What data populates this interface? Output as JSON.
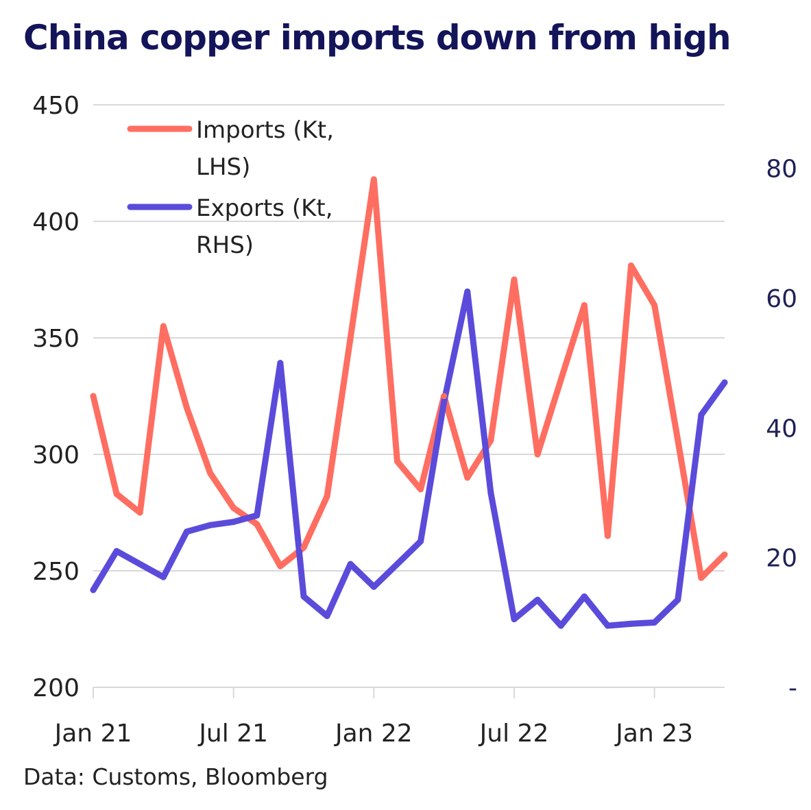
{
  "chart_data": {
    "type": "line",
    "title": "China copper imports down from high",
    "source": "Data: Customs, Bloomberg",
    "x": [
      "2021-01",
      "2021-02",
      "2021-03",
      "2021-04",
      "2021-05",
      "2021-06",
      "2021-07",
      "2021-08",
      "2021-09",
      "2021-10",
      "2021-11",
      "2021-12",
      "2022-01",
      "2022-02",
      "2022-03",
      "2022-04",
      "2022-05",
      "2022-06",
      "2022-07",
      "2022-08",
      "2022-09",
      "2022-10",
      "2022-11",
      "2022-12",
      "2023-01",
      "2023-02",
      "2023-03",
      "2023-04"
    ],
    "x_tick_labels": [
      "Jan 21",
      "Jul 21",
      "Jan 22",
      "Jul 22",
      "Jan 23"
    ],
    "x_tick_values": [
      "2021-01",
      "2021-07",
      "2022-01",
      "2022-07",
      "2023-01"
    ],
    "left_axis": {
      "ylim": [
        200,
        450
      ],
      "ticks": [
        200,
        250,
        300,
        350,
        400,
        450
      ],
      "tick_labels": [
        "200",
        "250",
        "300",
        "350",
        "400",
        "450"
      ]
    },
    "right_axis": {
      "ylim": [
        0,
        90
      ],
      "ticks": [
        0,
        20,
        40,
        60,
        80
      ],
      "tick_labels": [
        "-",
        "20",
        "40",
        "60",
        "80"
      ]
    },
    "grid": "horizontal",
    "legend_position": "top-left",
    "series": [
      {
        "name": "Imports (Kt, LHS)",
        "label_lines": [
          "Imports (Kt,",
          "LHS)"
        ],
        "axis": "left",
        "color": "#ff6e61",
        "values": [
          325,
          283,
          275,
          355,
          320,
          292,
          277,
          270,
          252,
          260,
          282,
          350,
          418,
          297,
          285,
          325,
          290,
          306,
          375,
          300,
          332,
          364,
          265,
          381,
          364,
          306,
          247,
          257
        ]
      },
      {
        "name": "Exports (Kt, RHS)",
        "label_lines": [
          "Exports (Kt,",
          "RHS)"
        ],
        "axis": "right",
        "color": "#5b4bdb",
        "values": [
          15,
          21,
          19,
          17,
          24,
          25,
          25.5,
          26.5,
          50,
          14,
          11,
          19,
          15.5,
          19,
          22.5,
          44,
          61,
          30,
          10.5,
          13.5,
          9.5,
          14,
          9.5,
          9.8,
          10,
          13.5,
          42,
          47
        ]
      }
    ]
  }
}
